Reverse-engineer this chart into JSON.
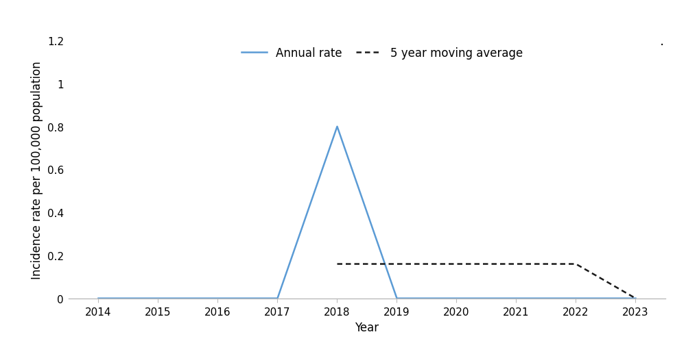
{
  "years": [
    2014,
    2015,
    2016,
    2017,
    2018,
    2019,
    2020,
    2021,
    2022,
    2023
  ],
  "annual_rate": [
    0.0,
    0.0,
    0.0,
    0.0,
    0.8,
    0.0,
    0.0,
    0.0,
    0.0,
    0.0
  ],
  "moving_avg_years": [
    2018,
    2019,
    2020,
    2021,
    2022,
    2023
  ],
  "moving_avg": [
    0.16,
    0.16,
    0.16,
    0.16,
    0.16,
    0.0
  ],
  "annual_color": "#5B9BD5",
  "moving_avg_color": "#1a1a1a",
  "xlabel": "Year",
  "ylabel": "Incidence rate per 100,000 population",
  "ylim": [
    0,
    1.2
  ],
  "yticks": [
    0,
    0.2,
    0.4,
    0.6,
    0.8,
    1.0,
    1.2
  ],
  "ytick_labels": [
    "0",
    "0.2",
    "0.4",
    "0.6",
    "0.8",
    "1",
    "1.2"
  ],
  "xlim": [
    2013.5,
    2023.5
  ],
  "xticks": [
    2014,
    2015,
    2016,
    2017,
    2018,
    2019,
    2020,
    2021,
    2022,
    2023
  ],
  "legend_annual": "Annual rate",
  "legend_moving": "5 year moving average",
  "annual_linewidth": 1.8,
  "moving_linewidth": 1.8,
  "bottom_spine_color": "#BBBBBB",
  "tick_label_fontsize": 11,
  "axis_label_fontsize": 12,
  "legend_fontsize": 12
}
